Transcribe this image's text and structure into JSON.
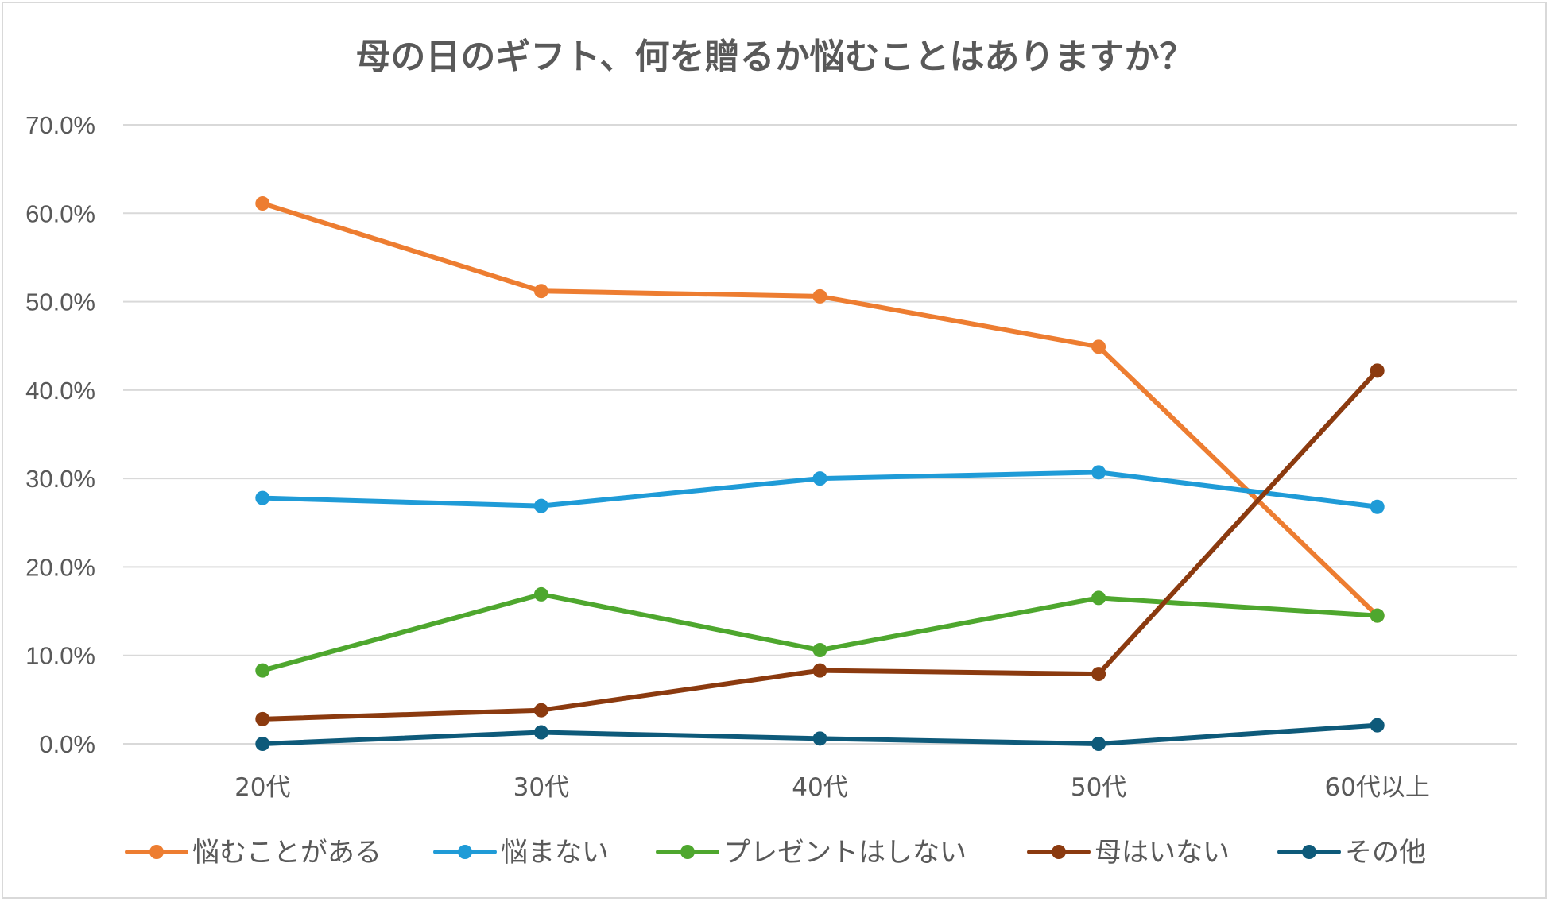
{
  "chart_data": {
    "type": "line",
    "title": "母の日のギフト、何を贈るか悩むことはありますか？",
    "xlabel": "",
    "ylabel": "",
    "categories": [
      "20代",
      "30代",
      "40代",
      "50代",
      "60代以上"
    ],
    "ylim": [
      0,
      70
    ],
    "yticks": [
      0,
      10,
      20,
      30,
      40,
      50,
      60,
      70
    ],
    "ytick_labels": [
      "0.0%",
      "10.0%",
      "20.0%",
      "30.0%",
      "40.0%",
      "50.0%",
      "60.0%",
      "70.0%"
    ],
    "grid": true,
    "legend_position": "bottom",
    "series": [
      {
        "name": "悩むことがある",
        "color": "#ed7d31",
        "values": [
          61.1,
          51.2,
          50.6,
          44.9,
          14.5
        ]
      },
      {
        "name": "悩まない",
        "color": "#1f9bd7",
        "values": [
          27.8,
          26.9,
          30.0,
          30.7,
          26.8
        ]
      },
      {
        "name": "プレゼントはしない",
        "color": "#4ea72e",
        "values": [
          8.3,
          16.9,
          10.6,
          16.5,
          14.5
        ]
      },
      {
        "name": "母はいない",
        "color": "#8b3a0f",
        "values": [
          2.8,
          3.8,
          8.3,
          7.9,
          42.2
        ]
      },
      {
        "name": "その他",
        "color": "#0e5a7a",
        "values": [
          0.0,
          1.3,
          0.6,
          0.0,
          2.1
        ]
      }
    ]
  }
}
